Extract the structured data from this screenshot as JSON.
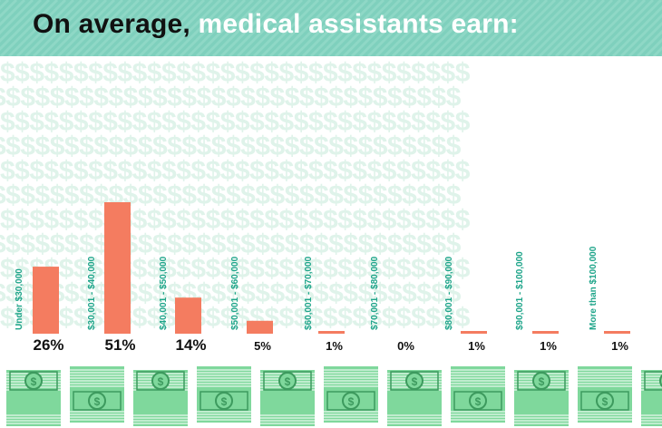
{
  "header": {
    "title_part1": "On average,",
    "title_part2": "medical assistants earn:"
  },
  "colors": {
    "banner": "#7fd0bd",
    "bar": "#f47c60",
    "category_label": "#1fa58a",
    "dollar_pattern": "#dff3ea",
    "cash_green": "#7fd89c",
    "cash_dark": "#3d9a5e"
  },
  "background_pattern": "$$$$$$$$$$$$$$$$$$$$$$$$$$$$$$$$",
  "chart_data": {
    "type": "bar",
    "title": "On average, medical assistants earn:",
    "categories": [
      "Under $30,000",
      "$30,001 - $40,000",
      "$40,001 - $50,000",
      "$50,001 - $60,000",
      "$60,001 - $70,000",
      "$70,001 - $80,000",
      "$80,001 - $90,000",
      "$90,001 - $100,000",
      "More than $100,000"
    ],
    "values": [
      26,
      51,
      14,
      5,
      1,
      0,
      1,
      1,
      1
    ],
    "value_labels": [
      "26%",
      "51%",
      "14%",
      "5%",
      "1%",
      "0%",
      "1%",
      "1%",
      "1%"
    ],
    "xlabel": "",
    "ylabel": "",
    "ylim": [
      0,
      51
    ]
  }
}
